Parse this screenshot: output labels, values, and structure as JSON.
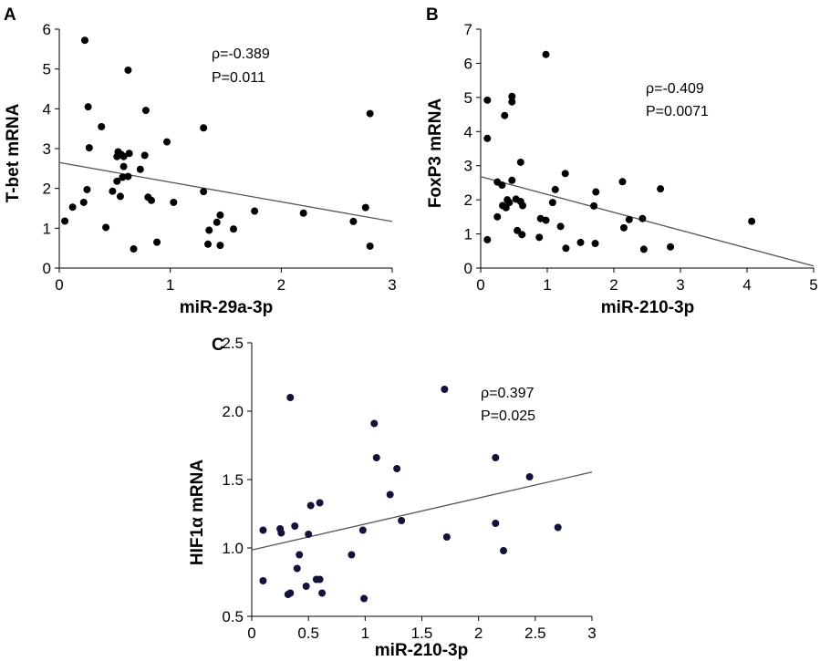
{
  "chart_data": [
    {
      "type": "scatter",
      "panel_label": "A",
      "xlabel": "miR-29a-3p",
      "ylabel": "T-bet mRNA",
      "xlim": [
        0,
        3
      ],
      "ylim": [
        0,
        6
      ],
      "xticks": [
        0,
        1,
        2,
        3
      ],
      "yticks": [
        0,
        1,
        2,
        3,
        4,
        5,
        6
      ],
      "xtick_labels": [
        "0",
        "1",
        "2",
        "3"
      ],
      "ytick_labels": [
        "0",
        "1",
        "2",
        "3",
        "4",
        "5",
        "6"
      ],
      "rho_text": "ρ=-0.389",
      "p_text": "P=0.011",
      "point_color": "#000000",
      "trend_line": {
        "x": [
          0,
          3
        ],
        "y": [
          2.65,
          1.17
        ]
      },
      "points": [
        [
          0.23,
          5.72
        ],
        [
          0.62,
          4.97
        ],
        [
          0.26,
          4.05
        ],
        [
          0.78,
          3.96
        ],
        [
          2.8,
          3.88
        ],
        [
          0.38,
          3.55
        ],
        [
          1.3,
          3.52
        ],
        [
          0.97,
          3.17
        ],
        [
          0.27,
          3.02
        ],
        [
          0.53,
          2.92
        ],
        [
          0.63,
          2.88
        ],
        [
          0.56,
          2.85
        ],
        [
          0.77,
          2.83
        ],
        [
          0.52,
          2.8
        ],
        [
          0.58,
          2.8
        ],
        [
          0.58,
          2.55
        ],
        [
          0.73,
          2.48
        ],
        [
          0.62,
          2.3
        ],
        [
          0.57,
          2.28
        ],
        [
          0.52,
          2.18
        ],
        [
          0.25,
          1.97
        ],
        [
          0.48,
          1.93
        ],
        [
          1.3,
          1.92
        ],
        [
          0.8,
          1.78
        ],
        [
          0.55,
          1.8
        ],
        [
          0.83,
          1.7
        ],
        [
          1.03,
          1.65
        ],
        [
          0.22,
          1.65
        ],
        [
          0.12,
          1.53
        ],
        [
          2.76,
          1.52
        ],
        [
          1.76,
          1.43
        ],
        [
          2.2,
          1.38
        ],
        [
          1.45,
          1.33
        ],
        [
          1.42,
          1.15
        ],
        [
          2.65,
          1.17
        ],
        [
          0.42,
          1.02
        ],
        [
          1.57,
          0.98
        ],
        [
          1.35,
          0.95
        ],
        [
          0.05,
          1.18
        ],
        [
          0.88,
          0.65
        ],
        [
          1.34,
          0.6
        ],
        [
          0.67,
          0.48
        ],
        [
          1.45,
          0.57
        ],
        [
          2.8,
          0.55
        ]
      ]
    },
    {
      "type": "scatter",
      "panel_label": "B",
      "xlabel": "miR-210-3p",
      "ylabel": "FoxP3 mRNA",
      "xlim": [
        0,
        5
      ],
      "ylim": [
        0,
        7
      ],
      "xticks": [
        0,
        1,
        2,
        3,
        4,
        5
      ],
      "yticks": [
        0,
        1,
        2,
        3,
        4,
        5,
        6,
        7
      ],
      "xtick_labels": [
        "0",
        "1",
        "2",
        "3",
        "4",
        "5"
      ],
      "ytick_labels": [
        "0",
        "1",
        "2",
        "3",
        "4",
        "5",
        "6",
        "7"
      ],
      "rho_text": "ρ=-0.409",
      "p_text": "P=0.0071",
      "point_color": "#000000",
      "trend_line": {
        "x": [
          0,
          5
        ],
        "y": [
          2.68,
          0.06
        ]
      },
      "points": [
        [
          0.98,
          6.26
        ],
        [
          0.1,
          4.92
        ],
        [
          0.47,
          5.03
        ],
        [
          0.47,
          4.87
        ],
        [
          0.36,
          4.47
        ],
        [
          0.1,
          3.8
        ],
        [
          0.6,
          3.1
        ],
        [
          1.27,
          2.77
        ],
        [
          0.25,
          2.52
        ],
        [
          0.32,
          2.43
        ],
        [
          0.47,
          2.57
        ],
        [
          2.13,
          2.53
        ],
        [
          2.7,
          2.32
        ],
        [
          1.12,
          2.3
        ],
        [
          1.73,
          2.23
        ],
        [
          0.4,
          2.0
        ],
        [
          0.53,
          2.02
        ],
        [
          0.63,
          1.83
        ],
        [
          1.08,
          1.92
        ],
        [
          0.33,
          1.83
        ],
        [
          0.38,
          1.77
        ],
        [
          0.43,
          1.92
        ],
        [
          0.6,
          1.95
        ],
        [
          1.7,
          1.82
        ],
        [
          0.25,
          1.5
        ],
        [
          0.9,
          1.45
        ],
        [
          0.98,
          1.4
        ],
        [
          1.2,
          1.22
        ],
        [
          2.23,
          1.42
        ],
        [
          2.43,
          1.45
        ],
        [
          1.5,
          0.75
        ],
        [
          2.15,
          1.18
        ],
        [
          0.55,
          1.1
        ],
        [
          0.62,
          0.98
        ],
        [
          0.1,
          0.83
        ],
        [
          0.88,
          0.9
        ],
        [
          1.28,
          0.58
        ],
        [
          1.72,
          0.72
        ],
        [
          2.45,
          0.55
        ],
        [
          2.85,
          0.62
        ],
        [
          4.07,
          1.37
        ]
      ]
    },
    {
      "type": "scatter",
      "panel_label": "C",
      "xlabel": "miR-210-3p",
      "ylabel": "HIF1α mRNA",
      "xlim": [
        0,
        3
      ],
      "ylim": [
        0.5,
        2.5
      ],
      "xticks": [
        0,
        0.5,
        1,
        1.5,
        2,
        2.5,
        3
      ],
      "yticks": [
        0.5,
        1.0,
        1.5,
        2.0,
        2.5
      ],
      "xtick_labels": [
        "0",
        "0.5",
        "1",
        "1.5",
        "2",
        "2.5",
        "3"
      ],
      "ytick_labels": [
        "0.5",
        "1.0",
        "1.5",
        "2.0",
        "2.5"
      ],
      "rho_text": "ρ=0.397",
      "p_text": "P=0.025",
      "point_color": "#12123a",
      "trend_line": {
        "x": [
          0,
          3
        ],
        "y": [
          0.985,
          1.555
        ]
      },
      "points": [
        [
          0.34,
          2.1
        ],
        [
          1.7,
          2.16
        ],
        [
          1.08,
          1.91
        ],
        [
          1.1,
          1.66
        ],
        [
          2.15,
          1.66
        ],
        [
          1.28,
          1.58
        ],
        [
          2.45,
          1.52
        ],
        [
          1.22,
          1.39
        ],
        [
          0.6,
          1.33
        ],
        [
          0.52,
          1.31
        ],
        [
          0.38,
          1.16
        ],
        [
          1.32,
          1.2
        ],
        [
          0.1,
          1.13
        ],
        [
          0.25,
          1.14
        ],
        [
          0.26,
          1.11
        ],
        [
          0.5,
          1.1
        ],
        [
          0.98,
          1.13
        ],
        [
          2.15,
          1.18
        ],
        [
          2.7,
          1.15
        ],
        [
          1.72,
          1.08
        ],
        [
          0.88,
          0.95
        ],
        [
          2.22,
          0.98
        ],
        [
          0.42,
          0.95
        ],
        [
          0.4,
          0.85
        ],
        [
          0.1,
          0.76
        ],
        [
          0.57,
          0.77
        ],
        [
          0.6,
          0.77
        ],
        [
          0.48,
          0.72
        ],
        [
          0.34,
          0.67
        ],
        [
          0.32,
          0.66
        ],
        [
          0.62,
          0.67
        ],
        [
          0.99,
          0.63
        ]
      ]
    }
  ]
}
